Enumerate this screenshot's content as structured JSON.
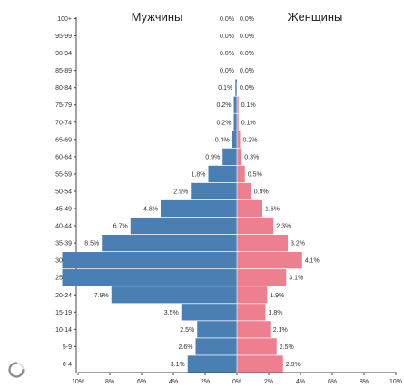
{
  "chart_data": {
    "type": "bar",
    "orientation": "horizontal-butterfly",
    "left_title": "Мужчины",
    "right_title": "Женщины",
    "categories": [
      "0-4",
      "5-9",
      "10-14",
      "15-19",
      "20-24",
      "25-29",
      "30-34",
      "35-39",
      "40-44",
      "45-49",
      "50-54",
      "55-59",
      "60-64",
      "65-69",
      "70-74",
      "75-79",
      "80-84",
      "85-89",
      "90-94",
      "95-99",
      "100+"
    ],
    "series": [
      {
        "name": "Мужчины",
        "color": "#4a7fb3",
        "values": [
          3.1,
          2.6,
          2.5,
          3.5,
          7.9,
          11.0,
          11.0,
          8.5,
          6.7,
          4.8,
          2.9,
          1.8,
          0.9,
          0.3,
          0.2,
          0.2,
          0.1,
          0.0,
          0.0,
          0.0,
          0.0
        ],
        "labels": [
          "3.1%",
          "2.6%",
          "2.5%",
          "3.5%",
          "7.9%",
          "",
          "",
          "8.5%",
          "6.7%",
          "4.8%",
          "2.9%",
          "1.8%",
          "0.9%",
          "0.3%",
          "0.2%",
          "0.2%",
          "0.1%",
          "0.0%",
          "0.0%",
          "0.0%",
          "0.0%"
        ]
      },
      {
        "name": "Женщины",
        "color": "#ee7f8e",
        "values": [
          2.9,
          2.5,
          2.1,
          1.8,
          1.9,
          3.1,
          4.1,
          3.2,
          2.3,
          1.6,
          0.9,
          0.5,
          0.3,
          0.2,
          0.1,
          0.1,
          0.0,
          0.0,
          0.0,
          0.0,
          0.0
        ],
        "labels": [
          "2.9%",
          "2.5%",
          "2.1%",
          "1.8%",
          "1.9%",
          "3.1%",
          "4.1%",
          "3.2%",
          "2.3%",
          "1.6%",
          "0.9%",
          "0.5%",
          "0.3%",
          "0.2%",
          "0.1%",
          "0.1%",
          "0.0%",
          "0.0%",
          "0.0%",
          "0.0%",
          "0.0%"
        ]
      }
    ],
    "xlim": [
      -10,
      10
    ],
    "x_ticks": [
      -10,
      -8,
      -6,
      -4,
      -2,
      0,
      2,
      4,
      6,
      8,
      10
    ],
    "x_tick_labels": [
      "10%",
      "8%",
      "6%",
      "4%",
      "2%",
      "0%",
      "2%",
      "4%",
      "6%",
      "8%",
      "10%"
    ],
    "grid": false
  },
  "icons": {
    "loading": "loading-spinner-icon"
  }
}
